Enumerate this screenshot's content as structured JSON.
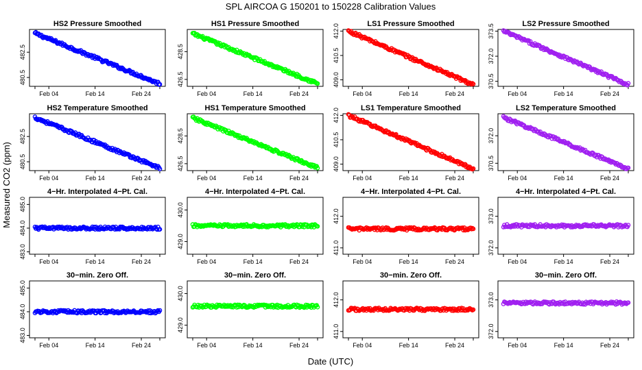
{
  "figure": {
    "title": "SPL   AIRCOA G   150201 to 150228   Calibration Values",
    "xlabel": "Date (UTC)",
    "ylabel": "Measured CO2 (ppm)"
  },
  "colors": {
    "HS2": "#0000ff",
    "HS1": "#00ff00",
    "LS1": "#ff0000",
    "LS2": "#a020f0"
  },
  "chart_data": [
    {
      "type": "scatter",
      "title": "HS2 Pressure Smoothed",
      "series": "HS2",
      "x_ticks": [
        "Feb 04",
        "Feb 14",
        "Feb 24"
      ],
      "y_ticks": [
        "482.5",
        "480.5"
      ],
      "ylim": [
        479.8,
        484.3
      ],
      "trend": {
        "start": 484.0,
        "end": 480.0
      }
    },
    {
      "type": "scatter",
      "title": "HS1 Pressure Smoothed",
      "series": "HS1",
      "x_ticks": [
        "Feb 04",
        "Feb 14",
        "Feb 24"
      ],
      "y_ticks": [
        "428.5",
        "426.5"
      ],
      "ylim": [
        426.0,
        430.1
      ],
      "trend": {
        "start": 429.8,
        "end": 426.2
      }
    },
    {
      "type": "scatter",
      "title": "LS1 Pressure Smoothed",
      "series": "LS1",
      "x_ticks": [
        "Feb 04",
        "Feb 14",
        "Feb 24"
      ],
      "y_ticks": [
        "412.0",
        "410.5",
        "409.0"
      ],
      "ylim": [
        408.6,
        412.1
      ],
      "trend": {
        "start": 412.0,
        "end": 408.7
      }
    },
    {
      "type": "scatter",
      "title": "LS2 Pressure Smoothed",
      "series": "LS2",
      "x_ticks": [
        "Feb 04",
        "Feb 14",
        "Feb 24"
      ],
      "y_ticks": [
        "373.5",
        "372.0",
        "370.5"
      ],
      "ylim": [
        370.2,
        373.6
      ],
      "trend": {
        "start": 373.5,
        "end": 370.3
      }
    },
    {
      "type": "scatter",
      "title": "HS2 Temperature Smoothed",
      "series": "HS2",
      "x_ticks": [
        "Feb 04",
        "Feb 14",
        "Feb 24"
      ],
      "y_ticks": [
        "482.5",
        "480.5"
      ],
      "ylim": [
        479.8,
        484.3
      ],
      "trend": {
        "start": 484.0,
        "end": 480.0
      }
    },
    {
      "type": "scatter",
      "title": "HS1 Temperature Smoothed",
      "series": "HS1",
      "x_ticks": [
        "Feb 04",
        "Feb 14",
        "Feb 24"
      ],
      "y_ticks": [
        "428.5",
        "426.5"
      ],
      "ylim": [
        426.0,
        430.1
      ],
      "trend": {
        "start": 429.8,
        "end": 426.2
      }
    },
    {
      "type": "scatter",
      "title": "LS1 Temperature Smoothed",
      "series": "LS1",
      "x_ticks": [
        "Feb 04",
        "Feb 14",
        "Feb 24"
      ],
      "y_ticks": [
        "412.0",
        "410.5",
        "409.0"
      ],
      "ylim": [
        408.6,
        412.1
      ],
      "trend": {
        "start": 412.0,
        "end": 408.7
      }
    },
    {
      "type": "scatter",
      "title": "LS2 Temperature Smoothed",
      "series": "LS2",
      "x_ticks": [
        "Feb 04",
        "Feb 14",
        "Feb 24"
      ],
      "y_ticks": [
        "372.0",
        "370.5"
      ],
      "ylim": [
        370.1,
        373.2
      ],
      "trend": {
        "start": 373.0,
        "end": 370.2
      }
    },
    {
      "type": "scatter",
      "title": "4−Hr. Interpolated 4−Pt. Cal.",
      "series": "HS2",
      "x_ticks": [
        "Feb 04",
        "Feb 14",
        "Feb 24"
      ],
      "y_ticks": [
        "485.0",
        "484.0",
        "483.0"
      ],
      "ylim": [
        482.9,
        485.3
      ],
      "trend": {
        "start": 484.0,
        "end": 484.0
      }
    },
    {
      "type": "scatter",
      "title": "4−Hr. Interpolated 4−Pt. Cal.",
      "series": "HS1",
      "x_ticks": [
        "Feb 04",
        "Feb 14",
        "Feb 24"
      ],
      "y_ticks": [
        "430.0",
        "429.0"
      ],
      "ylim": [
        428.6,
        430.4
      ],
      "trend": {
        "start": 429.5,
        "end": 429.5
      }
    },
    {
      "type": "scatter",
      "title": "4−Hr. Interpolated 4−Pt. Cal.",
      "series": "LS1",
      "x_ticks": [
        "Feb 04",
        "Feb 14",
        "Feb 24"
      ],
      "y_ticks": [
        "412.0",
        "411.0"
      ],
      "ylim": [
        410.8,
        412.6
      ],
      "trend": {
        "start": 411.6,
        "end": 411.6
      }
    },
    {
      "type": "scatter",
      "title": "4−Hr. Interpolated 4−Pt. Cal.",
      "series": "LS2",
      "x_ticks": [
        "Feb 04",
        "Feb 14",
        "Feb 24"
      ],
      "y_ticks": [
        "373.0",
        "372.0"
      ],
      "ylim": [
        371.8,
        373.6
      ],
      "trend": {
        "start": 372.7,
        "end": 372.7
      }
    },
    {
      "type": "scatter",
      "title": "30−min. Zero Off.",
      "series": "HS2",
      "x_ticks": [
        "Feb 04",
        "Feb 14",
        "Feb 24"
      ],
      "y_ticks": [
        "485.0",
        "484.0",
        "483.0"
      ],
      "ylim": [
        482.9,
        485.3
      ],
      "trend": {
        "start": 484.0,
        "end": 484.0
      }
    },
    {
      "type": "scatter",
      "title": "30−min. Zero Off.",
      "series": "HS1",
      "x_ticks": [
        "Feb 04",
        "Feb 14",
        "Feb 24"
      ],
      "y_ticks": [
        "430.0",
        "429.0"
      ],
      "ylim": [
        428.6,
        430.4
      ],
      "trend": {
        "start": 429.6,
        "end": 429.6
      }
    },
    {
      "type": "scatter",
      "title": "30−min. Zero Off.",
      "series": "LS1",
      "x_ticks": [
        "Feb 04",
        "Feb 14",
        "Feb 24"
      ],
      "y_ticks": [
        "412.0",
        "411.0"
      ],
      "ylim": [
        410.8,
        412.6
      ],
      "trend": {
        "start": 411.7,
        "end": 411.7
      }
    },
    {
      "type": "scatter",
      "title": "30−min. Zero Off.",
      "series": "LS2",
      "x_ticks": [
        "Feb 04",
        "Feb 14",
        "Feb 24"
      ],
      "y_ticks": [
        "373.0",
        "372.0"
      ],
      "ylim": [
        371.8,
        373.6
      ],
      "trend": {
        "start": 372.9,
        "end": 372.9
      }
    }
  ]
}
